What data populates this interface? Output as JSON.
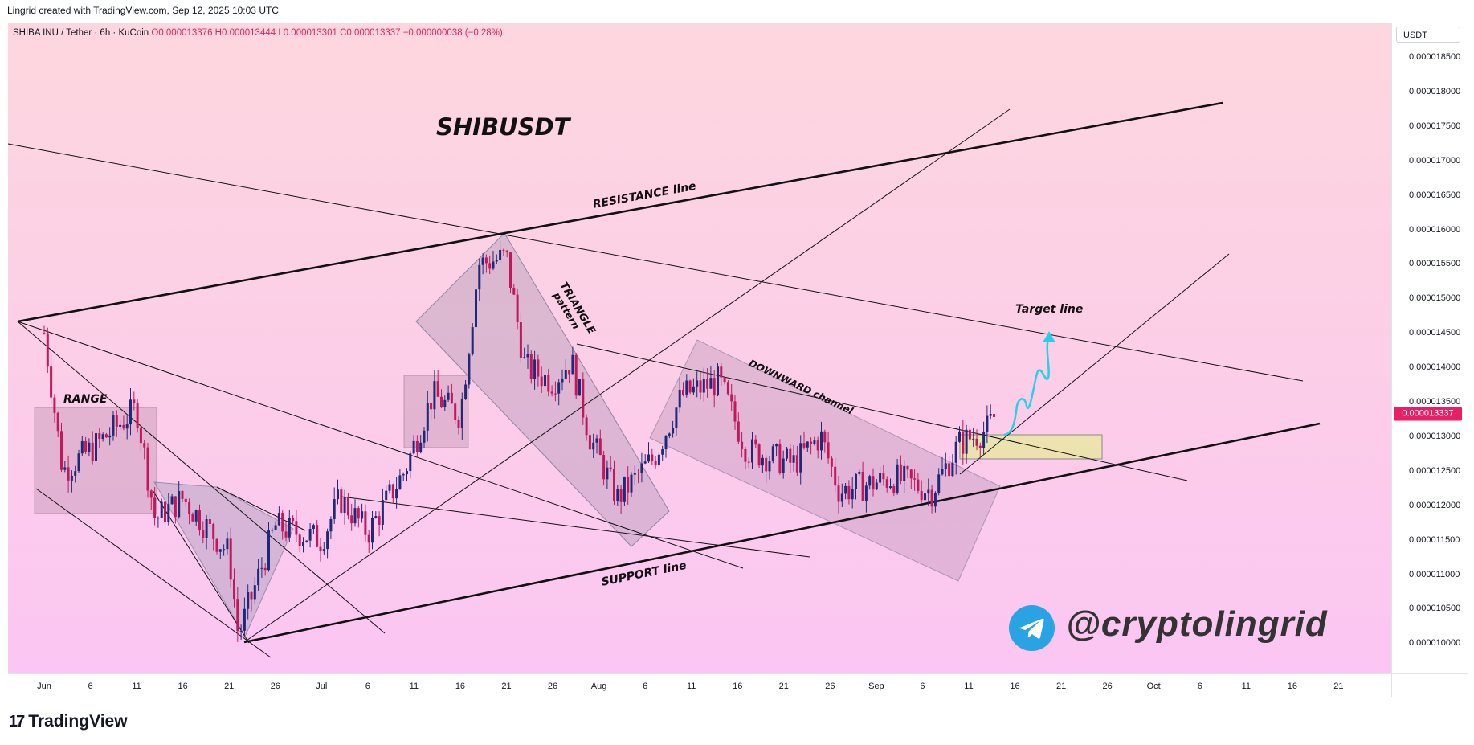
{
  "header": {
    "credit": "Lingrid created with TradingView.com, Sep 12, 2025 10:03 UTC"
  },
  "symbol_info": {
    "symbol": "SHIBA INU / Tether · 6h · KuCoin",
    "ohlc": "O0.000013376  H0.000013444  L0.000013301  C0.000013337  −0.000000038 (−0.28%)"
  },
  "price_axis": {
    "unit": "USDT",
    "last_price": "0.000013337"
  },
  "footer": {
    "logo_mark": "17",
    "logo_name": "TradingView"
  },
  "watermark": {
    "handle": "@cryptolingrid",
    "icon": "telegram-icon"
  },
  "annotations": {
    "title": "SHIBUSDT",
    "resistance": "RESISTANCE line",
    "support": "SUPPORT line",
    "range": "RANGE",
    "triangle_1": "TRIANGLE",
    "triangle_2": "pattern",
    "downward": "DOWNWARD channel",
    "target": "Target line"
  },
  "colors": {
    "bull": "#1e2a78",
    "bear": "#c2185b",
    "accent": "#e91e63",
    "arrow": "#27d0e6",
    "zone": "#e8e6a6",
    "telegram": "#2aa3e4"
  },
  "chart_data": {
    "type": "candlestick",
    "title": "SHIBUSDT",
    "x": [
      "Jun",
      "6",
      "11",
      "16",
      "21",
      "26",
      "Jul",
      "6",
      "11",
      "16",
      "21",
      "26",
      "Aug",
      "6",
      "11",
      "16",
      "21",
      "26",
      "Sep",
      "6",
      "11",
      "16",
      "21",
      "26",
      "Oct",
      "6",
      "11",
      "16",
      "21"
    ],
    "y_ticks": [
      "0.000018500",
      "0.000018000",
      "0.000017500",
      "0.000017000",
      "0.000016500",
      "0.000016000",
      "0.000015500",
      "0.000015000",
      "0.000014500",
      "0.000014000",
      "0.000013500",
      "0.000013000",
      "0.000012500",
      "0.000012000",
      "0.000011500",
      "0.000011000",
      "0.000010500",
      "0.000010000"
    ],
    "ylim": [
      9.6e-06,
      1.91e-05
    ],
    "key_levels": [
      {
        "label": "RESISTANCE line",
        "kind": "trendline"
      },
      {
        "label": "SUPPORT line",
        "kind": "trendline"
      },
      {
        "label": "Target line",
        "kind": "trendline"
      }
    ],
    "approx_closes": [
      {
        "t": "Jun 1",
        "v": 1.45e-05
      },
      {
        "t": "Jun 3",
        "v": 1.25e-05
      },
      {
        "t": "Jun 6",
        "v": 1.28e-05
      },
      {
        "t": "Jun 11",
        "v": 1.34e-05
      },
      {
        "t": "Jun 13",
        "v": 1.18e-05
      },
      {
        "t": "Jun 16",
        "v": 1.21e-05
      },
      {
        "t": "Jun 21",
        "v": 1.13e-05
      },
      {
        "t": "Jun 22",
        "v": 1.01e-05
      },
      {
        "t": "Jun 26",
        "v": 1.17e-05
      },
      {
        "t": "Jul 1",
        "v": 1.15e-05
      },
      {
        "t": "Jul 3",
        "v": 1.21e-05
      },
      {
        "t": "Jul 6",
        "v": 1.16e-05
      },
      {
        "t": "Jul 10",
        "v": 1.25e-05
      },
      {
        "t": "Jul 13",
        "v": 1.36e-05
      },
      {
        "t": "Jul 16",
        "v": 1.33e-05
      },
      {
        "t": "Jul 18",
        "v": 1.55e-05
      },
      {
        "t": "Jul 21",
        "v": 1.56e-05
      },
      {
        "t": "Jul 23",
        "v": 1.4e-05
      },
      {
        "t": "Jul 26",
        "v": 1.38e-05
      },
      {
        "t": "Jul 28",
        "v": 1.41e-05
      },
      {
        "t": "Jul 30",
        "v": 1.3e-05
      },
      {
        "t": "Aug 2",
        "v": 1.21e-05
      },
      {
        "t": "Aug 6",
        "v": 1.27e-05
      },
      {
        "t": "Aug 9",
        "v": 1.36e-05
      },
      {
        "t": "Aug 13",
        "v": 1.38e-05
      },
      {
        "t": "Aug 16",
        "v": 1.28e-05
      },
      {
        "t": "Aug 21",
        "v": 1.26e-05
      },
      {
        "t": "Aug 24",
        "v": 1.3e-05
      },
      {
        "t": "Aug 26",
        "v": 1.22e-05
      },
      {
        "t": "Sep 1",
        "v": 1.24e-05
      },
      {
        "t": "Sep 5",
        "v": 1.22e-05
      },
      {
        "t": "Sep 8",
        "v": 1.29e-05
      },
      {
        "t": "Sep 11",
        "v": 1.31e-05
      },
      {
        "t": "Sep 12",
        "v": 1.3337e-05
      }
    ]
  }
}
